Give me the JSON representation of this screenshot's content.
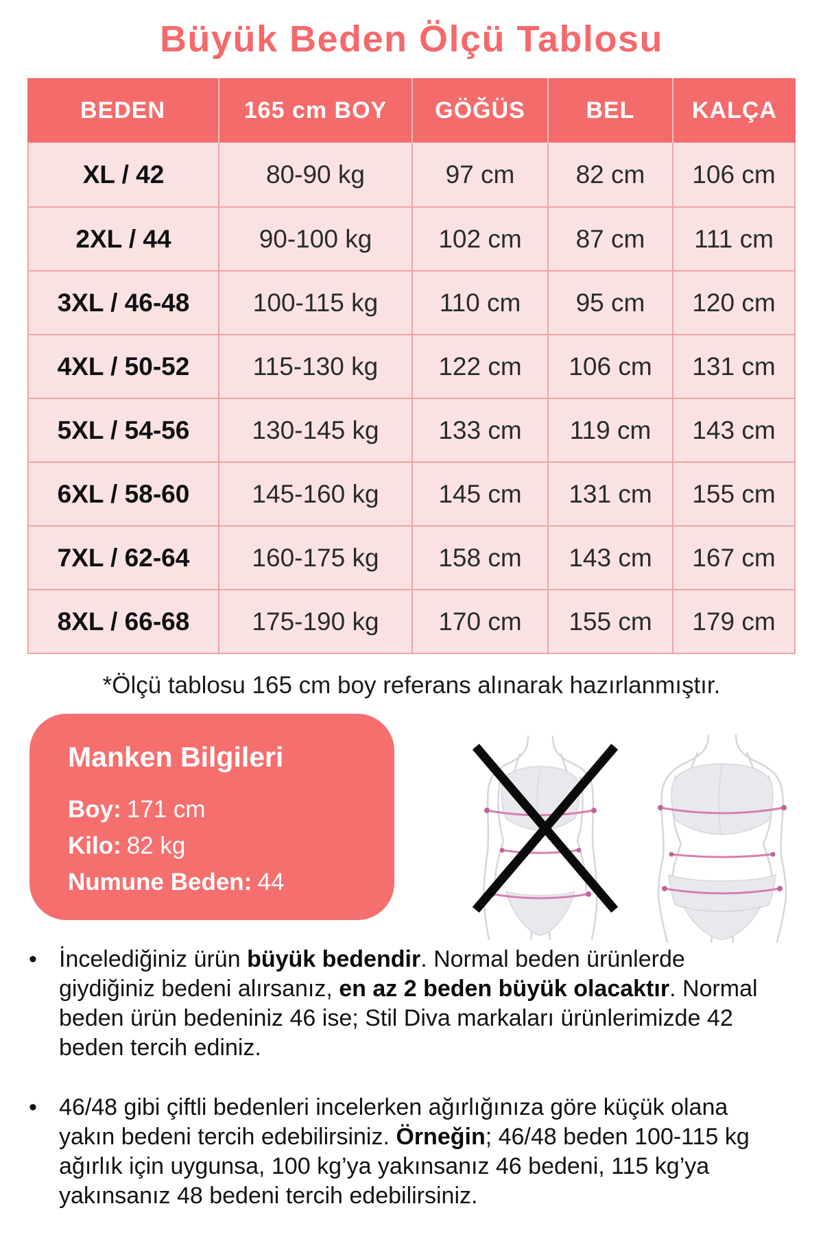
{
  "chart_data": {
    "type": "table",
    "title": "Büyük Beden Ölçü Tablosu",
    "columns": [
      "BEDEN",
      "165 cm BOY",
      "GÖĞÜS",
      "BEL",
      "KALÇA"
    ],
    "rows": [
      [
        "XL / 42",
        "80-90 kg",
        "97 cm",
        "82 cm",
        "106 cm"
      ],
      [
        "2XL / 44",
        "90-100 kg",
        "102 cm",
        "87 cm",
        "111 cm"
      ],
      [
        "3XL / 46-48",
        "100-115 kg",
        "110 cm",
        "95 cm",
        "120 cm"
      ],
      [
        "4XL / 50-52",
        "115-130 kg",
        "122 cm",
        "106 cm",
        "131 cm"
      ],
      [
        "5XL / 54-56",
        "130-145 kg",
        "133 cm",
        "119 cm",
        "143 cm"
      ],
      [
        "6XL / 58-60",
        "145-160 kg",
        "145 cm",
        "131 cm",
        "155 cm"
      ],
      [
        "7XL / 62-64",
        "160-175 kg",
        "158 cm",
        "143 cm",
        "167 cm"
      ],
      [
        "8XL / 66-68",
        "175-190 kg",
        "170 cm",
        "155 cm",
        "179 cm"
      ]
    ]
  },
  "page": {
    "footnote": "*Ölçü tablosu 165 cm boy referans alınarak hazırlanmıştır."
  },
  "model_info": {
    "title": "Manken Bilgileri",
    "separator": ":",
    "fields": [
      {
        "label": "Boy",
        "value": "171 cm"
      },
      {
        "label": "Kilo",
        "value": "82 kg"
      },
      {
        "label": "Numune Beden",
        "value": "44"
      }
    ]
  },
  "notes": {
    "bullet_char": "•",
    "items": [
      {
        "segments": [
          {
            "text": "İncelediğiniz ürün ",
            "bold": false
          },
          {
            "text": "büyük bedendir",
            "bold": true
          },
          {
            "text": ". Normal beden ürünlerde giydiğiniz bedeni alırsanız, ",
            "bold": false
          },
          {
            "text": "en az 2 beden büyük olacaktır",
            "bold": true
          },
          {
            "text": ". Normal beden ürün bedeniniz 46 ise; Stil Diva markaları ürünlerimizde 42 beden tercih ediniz.",
            "bold": false
          }
        ]
      },
      {
        "segments": [
          {
            "text": "46/48 gibi çiftli bedenleri incelerken ağırlığınıza göre küçük olana yakın bedeni tercih edebilirsiniz. ",
            "bold": false
          },
          {
            "text": "Örneğin",
            "bold": true
          },
          {
            "text": "; 46/48 beden 100-115 kg ağırlık için uygunsa, 100 kg’ya yakınsanız 46 bedeni, 115 kg’ya yakınsanız 48 bedeni tercih edebilirsiniz.",
            "bold": false
          }
        ]
      }
    ]
  },
  "icons": {
    "x_mark": "✕",
    "bullet": "•"
  },
  "colors": {
    "accent": "#f5696b",
    "header_bg": "#f46b6b",
    "cell_bg": "#fbe2e2",
    "grid_line": "#eda6a6",
    "box_bg": "#f56f6f",
    "measure": "#d77fb0",
    "measure_dot": "#c2639c",
    "sil_fill": "#e9e9ed",
    "sil_stroke": "#d6d6dc",
    "x_ink": "#0b0b0b"
  }
}
